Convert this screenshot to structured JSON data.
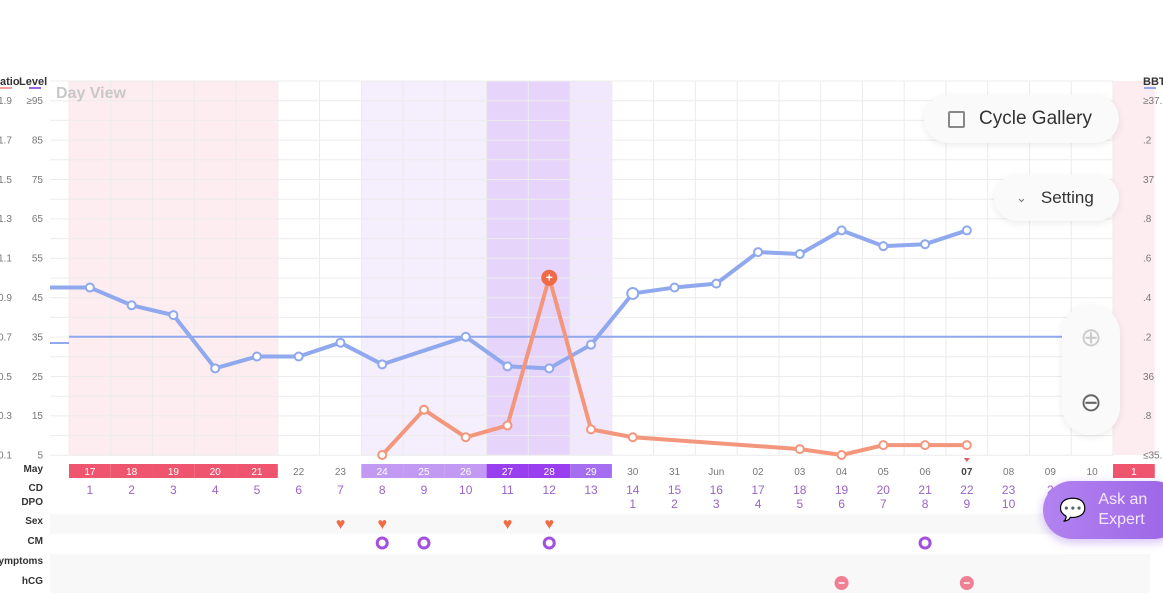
{
  "header": {
    "left_axis_labels": [
      "atio",
      "Level"
    ],
    "right_axis_label": "BBT",
    "view_label": "Day View"
  },
  "axes": {
    "ratio_ticks": [
      "1.9",
      "1.7",
      "1.5",
      "1.3",
      "1.1",
      "0.9",
      "0.7",
      "0.5",
      "0.3",
      "0.1"
    ],
    "level_ticks": [
      "≥95",
      "85",
      "75",
      "65",
      "55",
      "45",
      "35",
      "25",
      "15",
      "5"
    ],
    "bbt_ticks": [
      "≥37.",
      "2",
      ".2",
      "37",
      ".8",
      ".6",
      ".4",
      ".2",
      "36",
      ".8",
      "≤35."
    ]
  },
  "buttons": {
    "cycle_gallery": "Cycle Gallery",
    "setting": "Setting",
    "ask_expert_1": "Ask an",
    "ask_expert_2": "Expert"
  },
  "rows": {
    "month": "May",
    "cd": "CD",
    "dpo": "DPO",
    "sex": "Sex",
    "cm": "CM",
    "symptoms": "ymptoms",
    "hcg": "hCG"
  },
  "dates": [
    "17",
    "18",
    "19",
    "20",
    "21",
    "22",
    "23",
    "24",
    "25",
    "26",
    "27",
    "28",
    "29",
    "30",
    "31",
    "Jun",
    "02",
    "03",
    "04",
    "05",
    "06",
    "07",
    "08",
    "09",
    "10",
    "1"
  ],
  "date_phase": [
    "period",
    "period",
    "period",
    "period",
    "period",
    "",
    "",
    "fertile",
    "fertile",
    "fertile",
    "peak",
    "peak",
    "fertile2",
    "",
    "",
    "",
    "",
    "",
    "",
    "",
    "",
    "today",
    "",
    "",
    "",
    "period"
  ],
  "cd": [
    "1",
    "2",
    "3",
    "4",
    "5",
    "6",
    "7",
    "8",
    "9",
    "10",
    "11",
    "12",
    "13",
    "14",
    "15",
    "16",
    "17",
    "18",
    "19",
    "20",
    "21",
    "22",
    "23",
    "2"
  ],
  "dpo": [
    "",
    "",
    "",
    "",
    "",
    "",
    "",
    "",
    "",
    "",
    "",
    "",
    "",
    "1",
    "2",
    "3",
    "4",
    "5",
    "6",
    "7",
    "8",
    "9",
    "10"
  ],
  "sex_days": [
    7,
    8,
    11,
    12
  ],
  "cm_days": [
    8,
    9,
    12,
    21
  ],
  "hcg_days": [
    19,
    22
  ],
  "colors": {
    "bbt": "#8fa8ee",
    "lh": "#f4967c",
    "period": "#f0556f",
    "fertile": "#c39af3",
    "peak": "#9a3ff0",
    "heart": "#f26b45",
    "cm": "#a54fe0",
    "hcg": "#f07f93"
  },
  "chart_data": {
    "type": "line",
    "x_label_cd": "CD",
    "series": [
      {
        "name": "BBT",
        "axis": "right",
        "ylim": [
          35.6,
          37.4
        ],
        "cd": [
          1,
          2,
          3,
          4,
          5,
          6,
          7,
          8,
          10,
          11,
          12,
          13,
          14,
          15,
          16,
          17,
          18,
          19,
          20,
          21,
          22
        ],
        "values": [
          36.45,
          36.36,
          36.31,
          36.04,
          36.1,
          36.1,
          36.17,
          36.06,
          36.2,
          36.05,
          36.04,
          36.16,
          36.42,
          36.45,
          36.47,
          36.63,
          36.62,
          36.74,
          36.66,
          36.67,
          36.74
        ]
      },
      {
        "name": "Ratio",
        "axis": "left",
        "ylim": [
          0.1,
          1.9
        ],
        "cd": [
          8,
          9,
          10,
          11,
          12,
          13,
          14,
          18,
          19,
          20,
          21,
          22
        ],
        "values": [
          0.1,
          0.33,
          0.19,
          0.25,
          1.0,
          0.23,
          0.19,
          0.13,
          0.1,
          0.15,
          0.15,
          0.15
        ]
      }
    ],
    "coverline_bbt": 36.2,
    "grid": true
  }
}
